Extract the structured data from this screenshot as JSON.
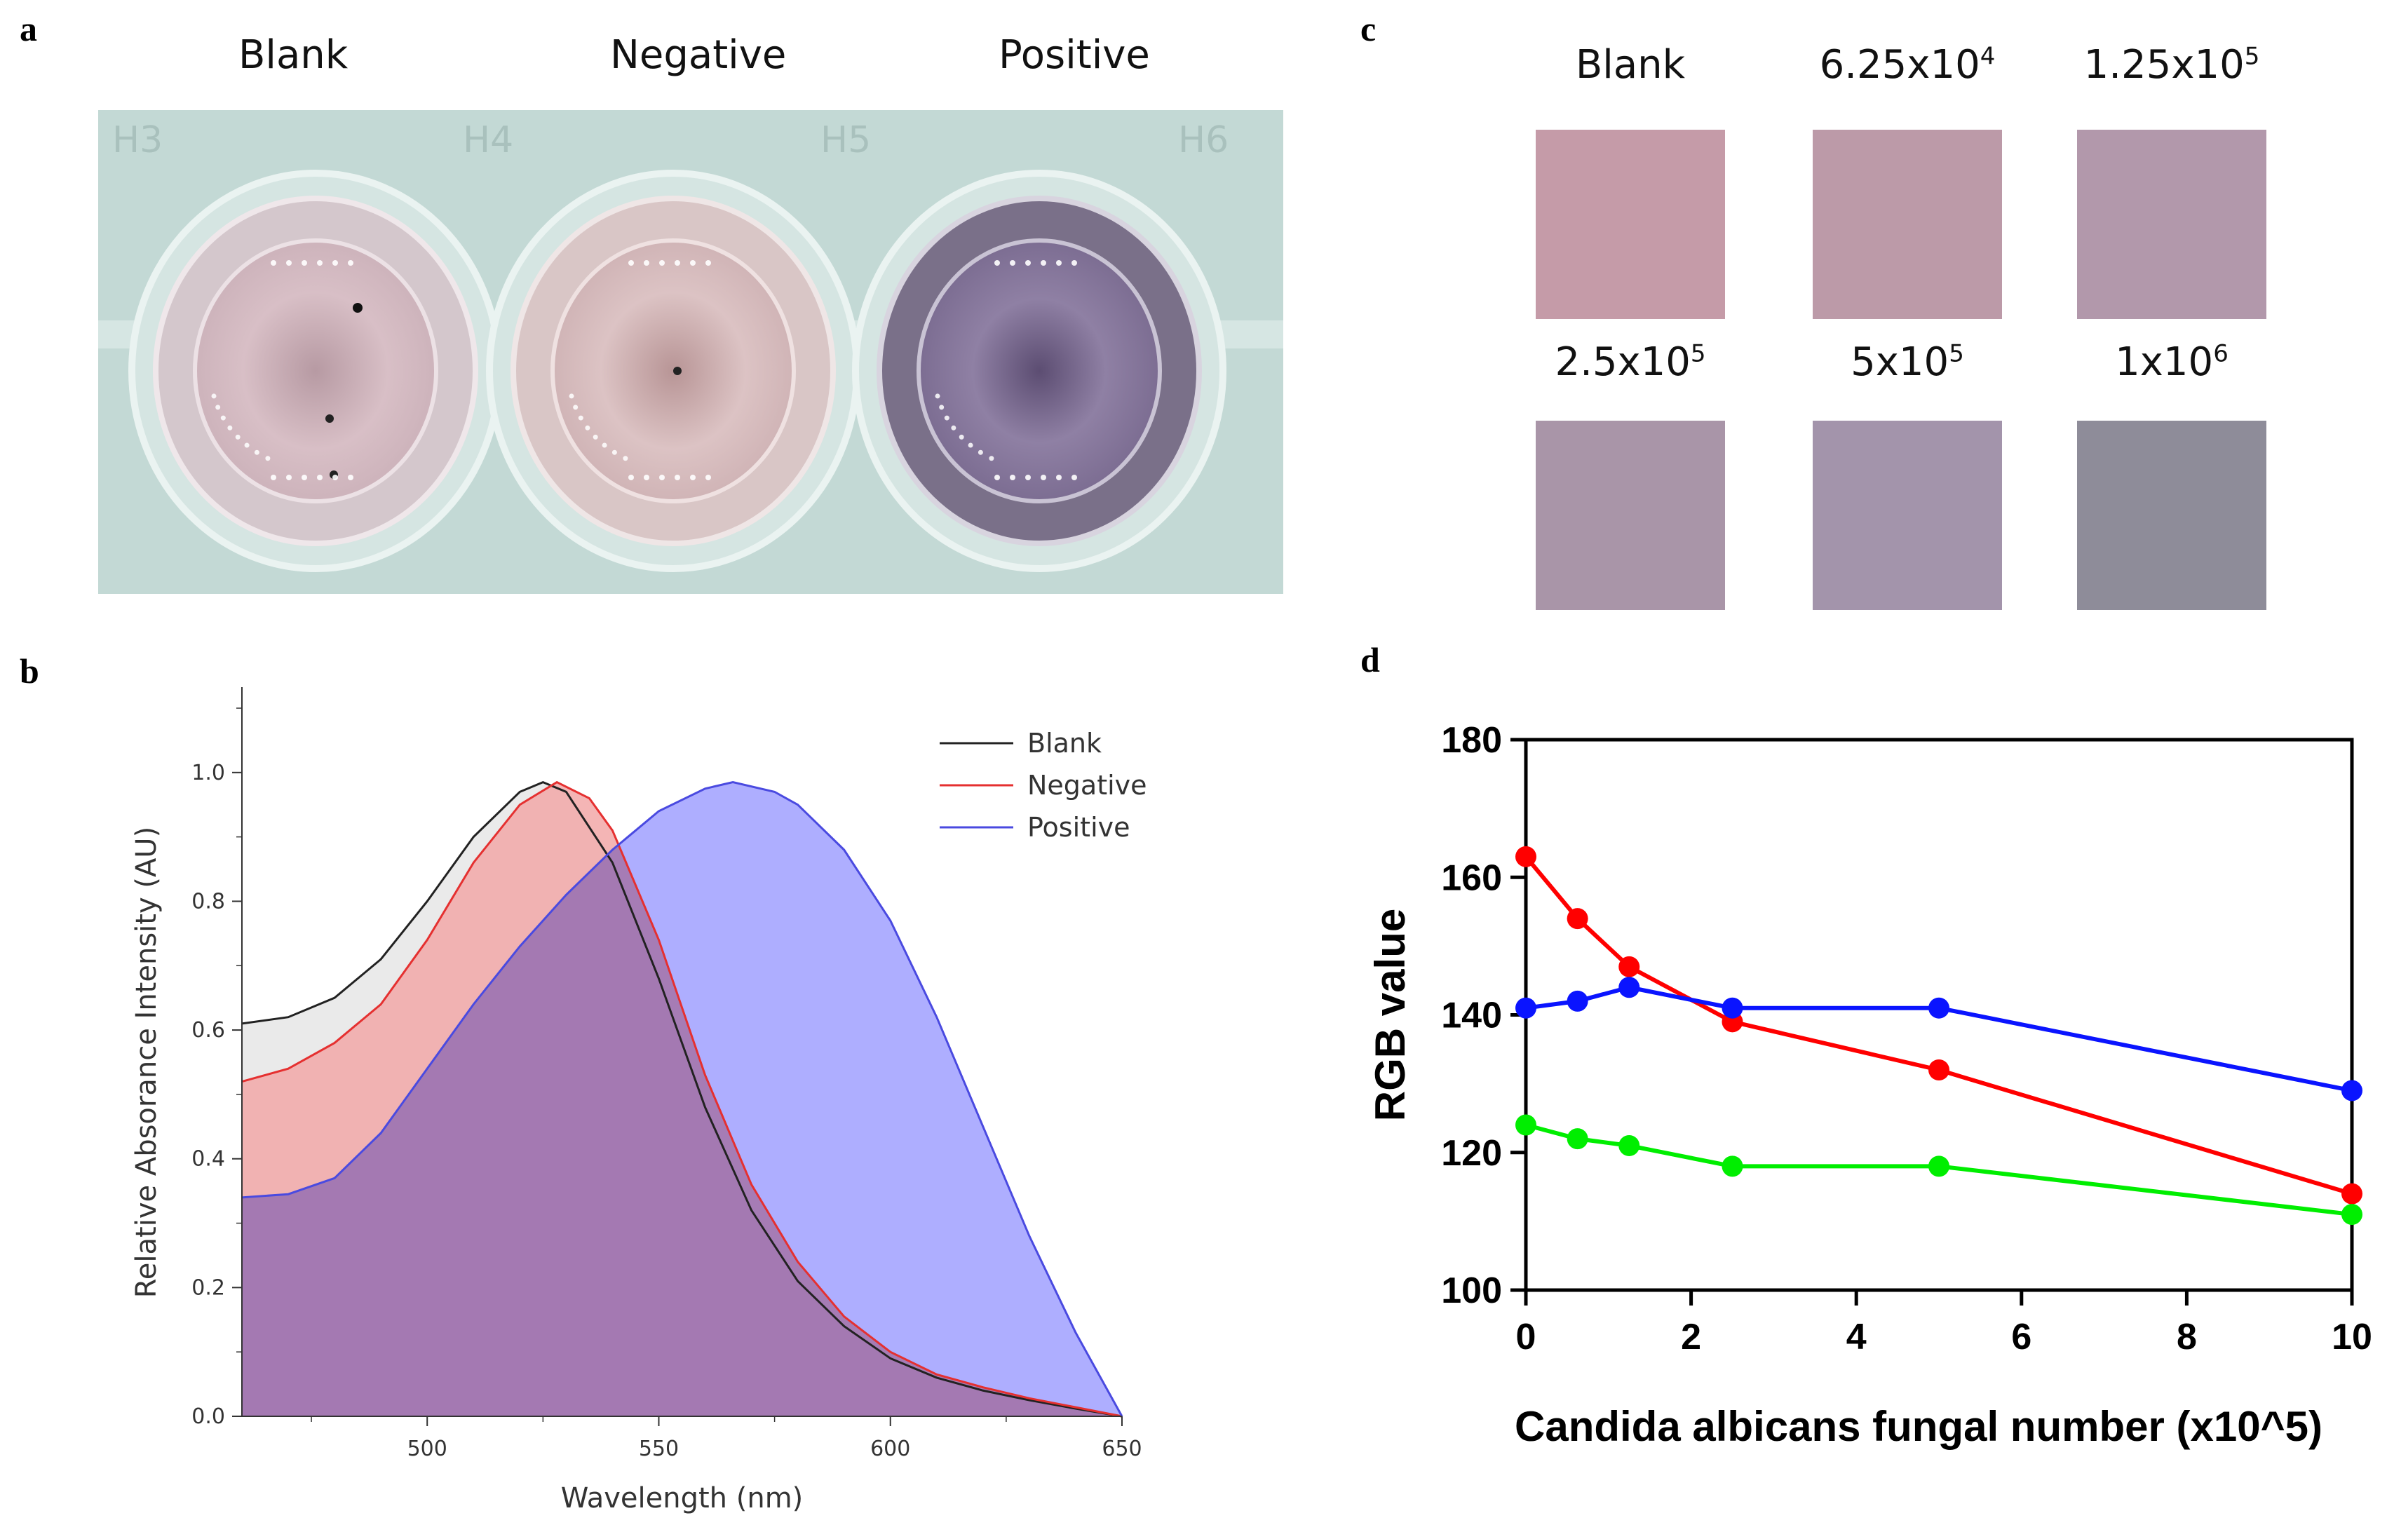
{
  "panels": {
    "a": {
      "letter": "a",
      "labels": [
        "Blank",
        "Negative",
        "Positive"
      ],
      "well_codes": [
        "H3",
        "H4",
        "H5",
        "H6"
      ],
      "colors": {
        "tray": "#c3d9d5",
        "wells": [
          "#d8bfc5",
          "#dcc3c4",
          "#8f80a4"
        ]
      }
    },
    "b": {
      "letter": "b"
    },
    "c": {
      "letter": "c",
      "swatches": [
        {
          "label_base": "Blank",
          "label_exp": "",
          "color": "#c59ba8"
        },
        {
          "label_base": "6.25x10",
          "label_exp": "4",
          "color": "#bc9aa8"
        },
        {
          "label_base": "1.25x10",
          "label_exp": "5",
          "color": "#b298ab"
        },
        {
          "label_base": "2.5x10",
          "label_exp": "5",
          "color": "#a995a8"
        },
        {
          "label_base": "5x10",
          "label_exp": "5",
          "color": "#a394ab"
        },
        {
          "label_base": "1x10",
          "label_exp": "6",
          "color": "#8e8c99"
        }
      ]
    },
    "d": {
      "letter": "d"
    }
  },
  "chart_data": [
    {
      "id": "b",
      "type": "area",
      "xlabel": "Wavelength (nm)",
      "ylabel": "Relative Absorance Intensity (AU)",
      "xlim": [
        460,
        650
      ],
      "ylim": [
        0,
        1.1
      ],
      "xticks": [
        500,
        550,
        600,
        650
      ],
      "xtick_labels": [
        "500",
        "550",
        "600",
        "650"
      ],
      "yticks": [
        0.0,
        0.2,
        0.4,
        0.6,
        0.8,
        1.0
      ],
      "ytick_labels": [
        "0.0",
        "0.2",
        "0.4",
        "0.6",
        "0.8",
        "1.0"
      ],
      "legend_position": "top-right",
      "series": [
        {
          "name": "Blank",
          "line_color": "#222222",
          "fill_color": "#e6e6e6",
          "x": [
            460,
            470,
            480,
            490,
            500,
            510,
            520,
            525,
            530,
            540,
            550,
            560,
            570,
            580,
            590,
            600,
            610,
            620,
            630,
            640,
            650
          ],
          "y": [
            0.61,
            0.62,
            0.65,
            0.71,
            0.8,
            0.9,
            0.97,
            0.985,
            0.97,
            0.86,
            0.68,
            0.48,
            0.32,
            0.21,
            0.14,
            0.09,
            0.06,
            0.04,
            0.025,
            0.012,
            0.0
          ]
        },
        {
          "name": "Negative",
          "line_color": "#e53030",
          "fill_color": "#f2a8a8",
          "x": [
            460,
            470,
            480,
            490,
            500,
            510,
            520,
            528,
            535,
            540,
            550,
            560,
            570,
            580,
            590,
            600,
            610,
            620,
            630,
            640,
            650
          ],
          "y": [
            0.52,
            0.54,
            0.58,
            0.64,
            0.74,
            0.86,
            0.95,
            0.985,
            0.96,
            0.91,
            0.74,
            0.53,
            0.36,
            0.24,
            0.155,
            0.1,
            0.065,
            0.045,
            0.028,
            0.014,
            0.0
          ]
        },
        {
          "name": "Positive",
          "line_color": "#4a4ae0",
          "fill_color": "#8c8cff",
          "x": [
            460,
            470,
            480,
            490,
            500,
            510,
            520,
            530,
            540,
            550,
            560,
            566,
            575,
            580,
            590,
            600,
            610,
            620,
            630,
            640,
            650
          ],
          "y": [
            0.34,
            0.345,
            0.37,
            0.44,
            0.54,
            0.64,
            0.73,
            0.81,
            0.88,
            0.94,
            0.975,
            0.985,
            0.97,
            0.95,
            0.88,
            0.77,
            0.62,
            0.45,
            0.28,
            0.13,
            0.0
          ]
        }
      ]
    },
    {
      "id": "d",
      "type": "line",
      "xlabel": "Candida albicans fungal number (x10^5)",
      "ylabel": "RGB value",
      "xlim": [
        0,
        10
      ],
      "ylim": [
        100,
        180
      ],
      "xticks": [
        0,
        2,
        4,
        6,
        8,
        10
      ],
      "xtick_labels": [
        "0",
        "2",
        "4",
        "6",
        "8",
        "10"
      ],
      "yticks": [
        100,
        120,
        140,
        160,
        180
      ],
      "ytick_labels": [
        "100",
        "120",
        "140",
        "160",
        "180"
      ],
      "x": [
        0,
        0.625,
        1.25,
        2.5,
        5,
        10
      ],
      "series": [
        {
          "color": "#ff0000",
          "values": [
            163,
            154,
            147,
            139,
            132,
            114
          ]
        },
        {
          "color": "#0a14ff",
          "values": [
            141,
            142,
            144,
            141,
            141,
            129
          ]
        },
        {
          "color": "#00ee00",
          "values": [
            124,
            122,
            121,
            118,
            118,
            111
          ]
        }
      ]
    }
  ]
}
